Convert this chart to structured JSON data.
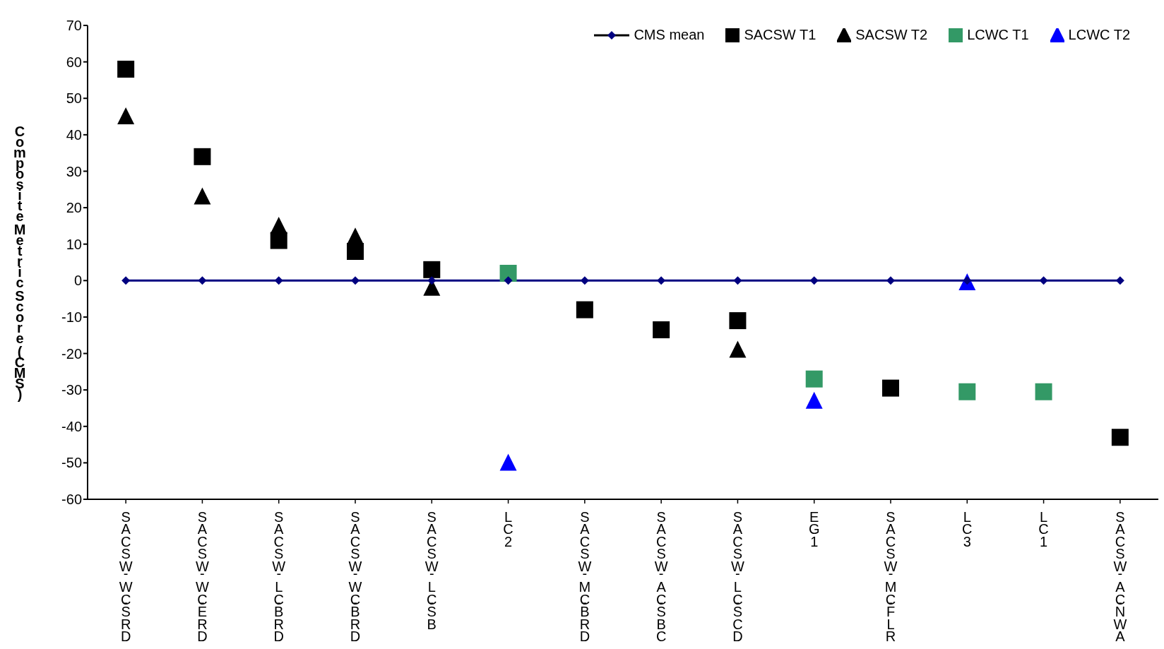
{
  "chart_data": {
    "type": "scatter",
    "ylabel": "Composite Metric Score (CMS)",
    "categories": [
      "SACSW - WC-SRD",
      "SACSW - WC-ERD",
      "SACSW - LC-BRD",
      "SACSW - WC-BRD",
      "SACSW - LC-SB",
      "LC2",
      "SACSW - MC-BRD",
      "SACSW - AC-SBC",
      "SACSW - LC-SCD",
      "EG1",
      "SACSW - MC-FLR",
      "LC3",
      "LC1",
      "SACSW - AC-NWA"
    ],
    "series": [
      {
        "name": "CMS mean",
        "type": "line",
        "marker": "diamond",
        "color": "#000080",
        "values": [
          0,
          0,
          0,
          0,
          0,
          0,
          0,
          0,
          0,
          0,
          0,
          0,
          0,
          0
        ]
      },
      {
        "name": "SACSW T1",
        "marker": "square",
        "color": "#000000",
        "values": [
          58,
          34,
          11,
          8,
          3,
          null,
          -8,
          -13.5,
          -11,
          null,
          -29.5,
          null,
          null,
          -43
        ]
      },
      {
        "name": "SACSW T2",
        "marker": "triangle",
        "color": "#000000",
        "values": [
          45,
          23,
          15,
          12,
          -2,
          null,
          null,
          null,
          -19,
          null,
          null,
          null,
          null,
          null
        ]
      },
      {
        "name": "LCWC T1",
        "marker": "square",
        "color": "#339966",
        "values": [
          null,
          null,
          null,
          null,
          null,
          2,
          null,
          null,
          null,
          -27,
          null,
          -30.5,
          -30.5,
          null
        ]
      },
      {
        "name": "LCWC T2",
        "marker": "triangle",
        "color": "#0000ff",
        "values": [
          null,
          null,
          null,
          null,
          null,
          -50,
          null,
          null,
          null,
          -33,
          null,
          -0.5,
          null,
          null
        ]
      }
    ],
    "ylim": [
      -60,
      70
    ],
    "yticks": [
      -60,
      -50,
      -40,
      -30,
      -20,
      -10,
      0,
      10,
      20,
      30,
      40,
      50,
      60,
      70
    ],
    "legend": "top right"
  }
}
